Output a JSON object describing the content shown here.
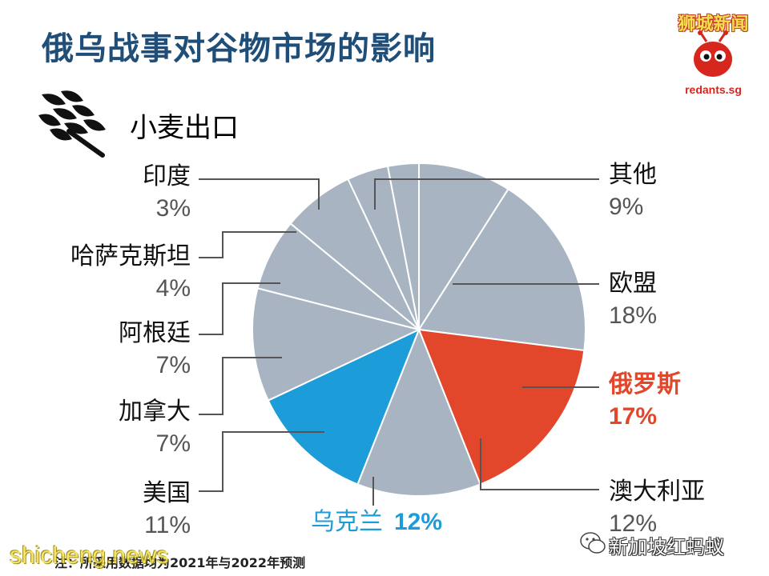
{
  "title": "俄乌战事对谷物市场的影响",
  "logo": {
    "name": "狮城新闻",
    "url": "redants.sg"
  },
  "footnote": "注：所采用数据均为2021年与2022年预测",
  "watermark_left": "shicheng.news",
  "watermark_right": "新加坡红蚂蚁",
  "colors": {
    "gray": "#a9b4c2",
    "red": "#e2462b",
    "blue": "#1c9cd9",
    "title": "#1f4e79"
  },
  "chart_data": {
    "type": "pie",
    "title": "小麦出口",
    "slices": [
      {
        "name": "其他",
        "value": 9,
        "label": "9%",
        "color": "#a9b4c2"
      },
      {
        "name": "欧盟",
        "value": 18,
        "label": "18%",
        "color": "#a9b4c2"
      },
      {
        "name": "俄罗斯",
        "value": 17,
        "label": "17%",
        "color": "#e2462b"
      },
      {
        "name": "澳大利亚",
        "value": 12,
        "label": "12%",
        "color": "#a9b4c2"
      },
      {
        "name": "乌克兰",
        "value": 12,
        "label": "12%",
        "color": "#1c9cd9"
      },
      {
        "name": "美国",
        "value": 11,
        "label": "11%",
        "color": "#a9b4c2"
      },
      {
        "name": "加拿大",
        "value": 7,
        "label": "7%",
        "color": "#a9b4c2"
      },
      {
        "name": "阿根廷",
        "value": 7,
        "label": "7%",
        "color": "#a9b4c2"
      },
      {
        "name": "哈萨克斯坦",
        "value": 4,
        "label": "4%",
        "color": "#a9b4c2"
      },
      {
        "name": "印度",
        "value": 3,
        "label": "3%",
        "color": "#a9b4c2"
      }
    ]
  }
}
